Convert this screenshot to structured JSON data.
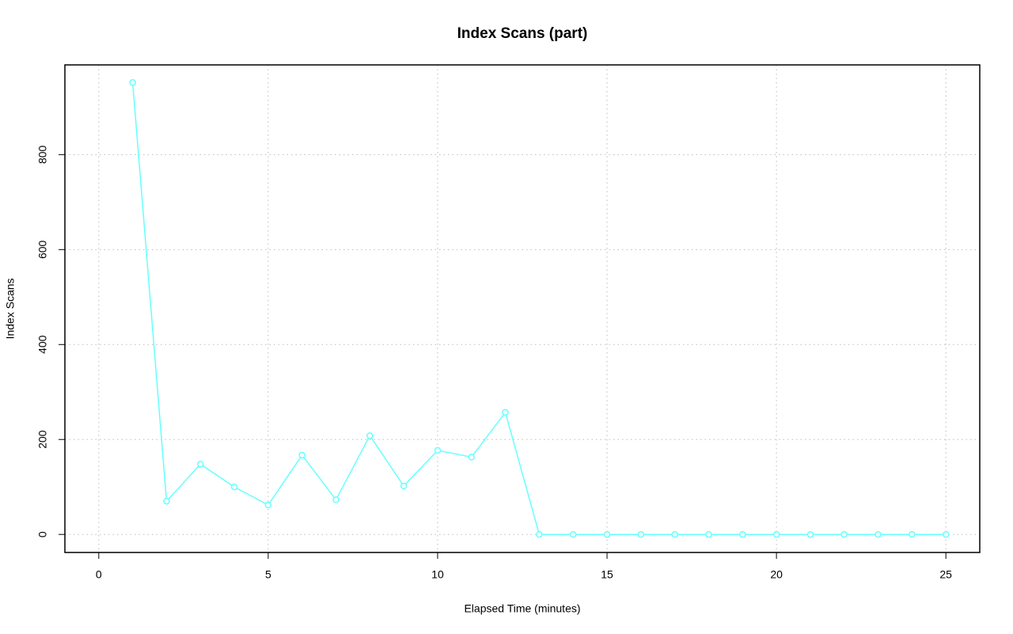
{
  "chart_data": {
    "type": "line",
    "title": "Index Scans (part)",
    "x_label": "Elapsed Time (minutes)",
    "y_label": "Index Scans",
    "x": [
      1,
      2,
      3,
      4,
      5,
      6,
      7,
      8,
      9,
      10,
      11,
      12,
      13,
      14,
      15,
      16,
      17,
      18,
      19,
      20,
      21,
      22,
      23,
      24,
      25
    ],
    "series": [
      {
        "name": "Index Scans",
        "color": "#66ffff",
        "values": [
          952,
          70,
          148,
          100,
          62,
          167,
          73,
          208,
          102,
          177,
          163,
          257,
          0,
          0,
          0,
          0,
          0,
          0,
          0,
          0,
          0,
          0,
          0,
          0,
          0
        ]
      }
    ],
    "xlim": [
      -1,
      26
    ],
    "xticks": [
      0,
      5,
      10,
      15,
      20,
      25
    ],
    "ylim": [
      -38,
      989
    ],
    "yticks": [
      0,
      200,
      400,
      600,
      800
    ],
    "grid": true
  }
}
